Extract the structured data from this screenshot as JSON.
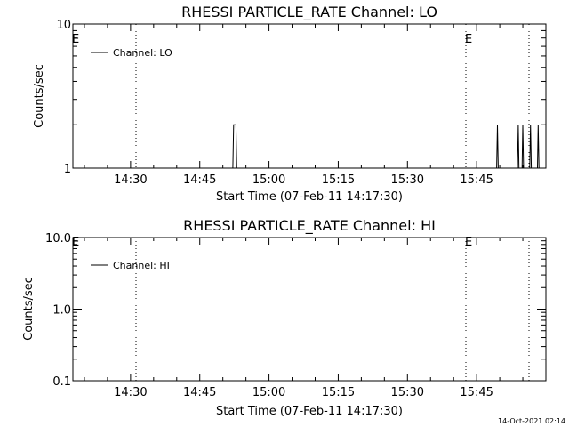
{
  "footer": {
    "timestamp": "14-Oct-2021 02:14"
  },
  "chart_data": [
    {
      "type": "line",
      "title": "RHESSI PARTICLE_RATE Channel: LO",
      "xlabel": "Start Time (07-Feb-11 14:17:30)",
      "ylabel": "Counts/sec",
      "y_scale": "log",
      "ylim": [
        1,
        10
      ],
      "y_tick_labels": [
        "10",
        "1"
      ],
      "x_tick_labels": [
        "14:30",
        "14:45",
        "15:00",
        "15:15",
        "15:30",
        "15:45"
      ],
      "legend": {
        "position": "top-left",
        "entries": [
          "Channel: LO"
        ]
      },
      "eclipse_marker": "E",
      "series": [
        {
          "name": "Channel: LO",
          "points": [
            [
              "14:17:30",
              1
            ],
            [
              "14:52:10",
              1
            ],
            [
              "14:52:20",
              2
            ],
            [
              "14:52:50",
              2
            ],
            [
              "14:53:00",
              1
            ],
            [
              "15:49:20",
              1
            ],
            [
              "15:49:30",
              2
            ],
            [
              "15:49:40",
              1
            ],
            [
              "15:53:50",
              1
            ],
            [
              "15:54:00",
              2
            ],
            [
              "15:54:10",
              1
            ],
            [
              "15:54:50",
              1
            ],
            [
              "15:55:00",
              2
            ],
            [
              "15:55:10",
              1
            ],
            [
              "15:56:30",
              1
            ],
            [
              "15:56:40",
              2
            ],
            [
              "15:56:50",
              1
            ],
            [
              "15:58:10",
              1
            ],
            [
              "15:58:20",
              2
            ],
            [
              "15:58:30",
              1
            ],
            [
              "15:59:00",
              1
            ]
          ]
        }
      ]
    },
    {
      "type": "line",
      "title": "RHESSI PARTICLE_RATE Channel: HI",
      "xlabel": "Start Time (07-Feb-11 14:17:30)",
      "ylabel": "Counts/sec",
      "y_scale": "log",
      "ylim": [
        0.1,
        10
      ],
      "y_tick_labels": [
        "10.0",
        "1.0",
        "0.1"
      ],
      "x_tick_labels": [
        "14:30",
        "14:45",
        "15:00",
        "15:15",
        "15:30",
        "15:45"
      ],
      "legend": {
        "position": "top-left",
        "entries": [
          "Channel: HI"
        ]
      },
      "eclipse_marker": "E",
      "series": [
        {
          "name": "Channel: HI",
          "points": []
        }
      ]
    }
  ]
}
